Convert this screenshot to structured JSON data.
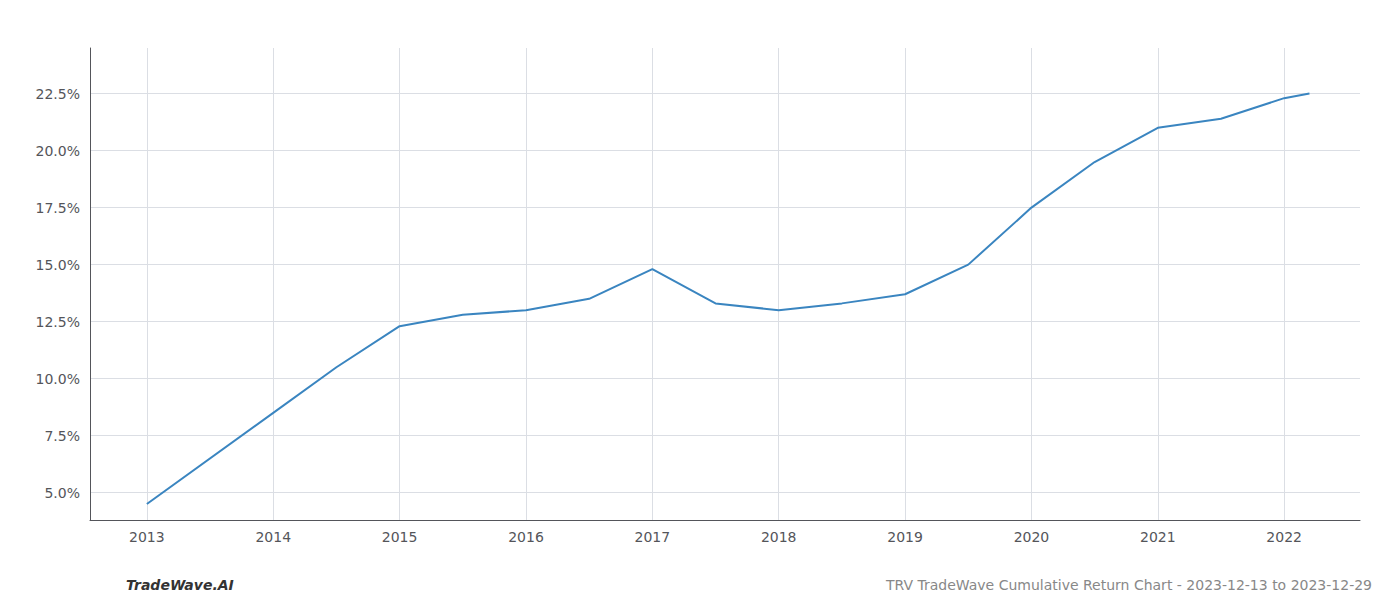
{
  "chart_data": {
    "type": "line",
    "x": [
      2013.0,
      2014.0,
      2014.5,
      2015.0,
      2015.5,
      2016.0,
      2016.5,
      2017.0,
      2017.5,
      2018.0,
      2018.5,
      2019.0,
      2019.5,
      2020.0,
      2020.5,
      2021.0,
      2021.5,
      2022.0,
      2022.2
    ],
    "values": [
      4.5,
      8.5,
      10.5,
      12.3,
      12.8,
      13.0,
      13.5,
      14.8,
      13.3,
      13.0,
      13.3,
      13.7,
      15.0,
      17.5,
      19.5,
      21.0,
      21.4,
      22.3,
      22.5
    ],
    "color": "#3a85c0",
    "xlim": [
      2012.55,
      2022.6
    ],
    "xticks": [
      2013,
      2014,
      2015,
      2016,
      2017,
      2018,
      2019,
      2020,
      2021,
      2022
    ],
    "ylim": [
      3.8,
      24.5
    ],
    "yticks": [
      {
        "value": 5.0,
        "label": "5.0%"
      },
      {
        "value": 7.5,
        "label": "7.5%"
      },
      {
        "value": 10.0,
        "label": "10.0%"
      },
      {
        "value": 12.5,
        "label": "12.5%"
      },
      {
        "value": 15.0,
        "label": "15.0%"
      },
      {
        "value": 17.5,
        "label": "17.5%"
      },
      {
        "value": 20.0,
        "label": "20.0%"
      },
      {
        "value": 22.5,
        "label": "22.5%"
      }
    ],
    "grid": true,
    "annotations": [
      "TradeWave.AI",
      "TRV TradeWave Cumulative Return Chart - 2023-12-13 to 2023-12-29"
    ]
  }
}
